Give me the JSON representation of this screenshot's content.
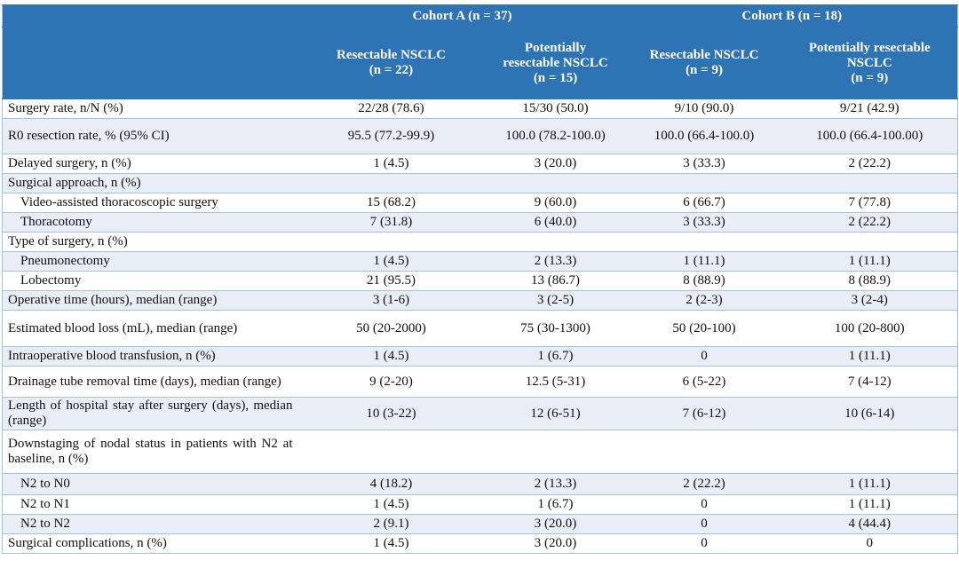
{
  "header": {
    "cohorts": [
      "Cohort A (n = 37)",
      "Cohort B (n = 18)"
    ],
    "subgroups": [
      [
        "Resectable NSCLC",
        "(n = 22)"
      ],
      [
        "Potentially",
        "resectable NSCLC",
        "(n = 15)"
      ],
      [
        "Resectable NSCLC",
        "(n = 9)"
      ],
      [
        "Potentially resectable",
        "NSCLC",
        "(n = 9)"
      ]
    ]
  },
  "colors": {
    "header_bg": "#2E74B5",
    "band_bg": "#E9EDF6",
    "border": "#9DC3E6"
  },
  "rows": [
    {
      "label": "Surgery rate, n/N (%)",
      "values": [
        "22/28 (78.6)",
        "15/30 (50.0)",
        "9/10 (90.0)",
        "9/21 (42.9)"
      ]
    },
    {
      "label": "R0 resection rate, % (95% CI)",
      "values": [
        "95.5 (77.2-99.9)",
        "100.0 (78.2-100.0)",
        "100.0 (66.4-100.0)",
        "100.0 (66.4-100.00)"
      ]
    },
    {
      "label": "Delayed surgery, n (%)",
      "values": [
        "1 (4.5)",
        "3 (20.0)",
        "3 (33.3)",
        "2 (22.2)"
      ]
    },
    {
      "label": "Surgical approach, n (%)",
      "values": [
        "",
        "",
        "",
        ""
      ]
    },
    {
      "label": "Video-assisted thoracoscopic surgery",
      "values": [
        "15 (68.2)",
        "9 (60.0)",
        "6 (66.7)",
        "7 (77.8)"
      ],
      "indent": true
    },
    {
      "label": "Thoracotomy",
      "values": [
        "7 (31.8)",
        "6 (40.0)",
        "3 (33.3)",
        "2 (22.2)"
      ],
      "indent": true
    },
    {
      "label": "Type of surgery, n (%)",
      "values": [
        "",
        "",
        "",
        ""
      ]
    },
    {
      "label": "Pneumonectomy",
      "values": [
        "1 (4.5)",
        "2 (13.3)",
        "1 (11.1)",
        "1 (11.1)"
      ],
      "indent": true
    },
    {
      "label": "Lobectomy",
      "values": [
        "21 (95.5)",
        "13 (86.7)",
        "8 (88.9)",
        "8 (88.9)"
      ],
      "indent": true
    },
    {
      "label": "Operative time (hours), median (range)",
      "values": [
        "3 (1-6)",
        "3 (2-5)",
        "2 (2-3)",
        "3 (2-4)"
      ]
    },
    {
      "label": "Estimated blood loss (mL), median (range)",
      "values": [
        "50 (20-2000)",
        "75 (30-1300)",
        "50 (20-100)",
        "100 (20-800)"
      ]
    },
    {
      "label": "Intraoperative blood transfusion, n (%)",
      "values": [
        "1 (4.5)",
        "1 (6.7)",
        "0",
        "1 (11.1)"
      ]
    },
    {
      "label": "Drainage tube removal time (days), median (range)",
      "values": [
        "9 (2-20)",
        "12.5 (5-31)",
        "6 (5-22)",
        "7 (4-12)"
      ]
    },
    {
      "label": "Length of hospital stay after surgery (days), median (range)",
      "values": [
        "10 (3-22)",
        "12 (6-51)",
        "7 (6-12)",
        "10 (6-14)"
      ]
    },
    {
      "label": "Downstaging of nodal status in patients with N2 at baseline, n (%)",
      "values": [
        "",
        "",
        "",
        ""
      ]
    },
    {
      "label": "N2 to N0",
      "values": [
        "4 (18.2)",
        "2 (13.3)",
        "2 (22.2)",
        "1 (11.1)"
      ],
      "indent": true
    },
    {
      "label": "N2 to N1",
      "values": [
        "1 (4.5)",
        "1 (6.7)",
        "0",
        "1 (11.1)"
      ],
      "indent": true
    },
    {
      "label": "N2 to N2",
      "values": [
        "2 (9.1)",
        "3 (20.0)",
        "0",
        "4 (44.4)"
      ],
      "indent": true
    },
    {
      "label": "Surgical complications, n (%)",
      "values": [
        "1 (4.5)",
        "3 (20.0)",
        "0",
        "0"
      ]
    }
  ]
}
